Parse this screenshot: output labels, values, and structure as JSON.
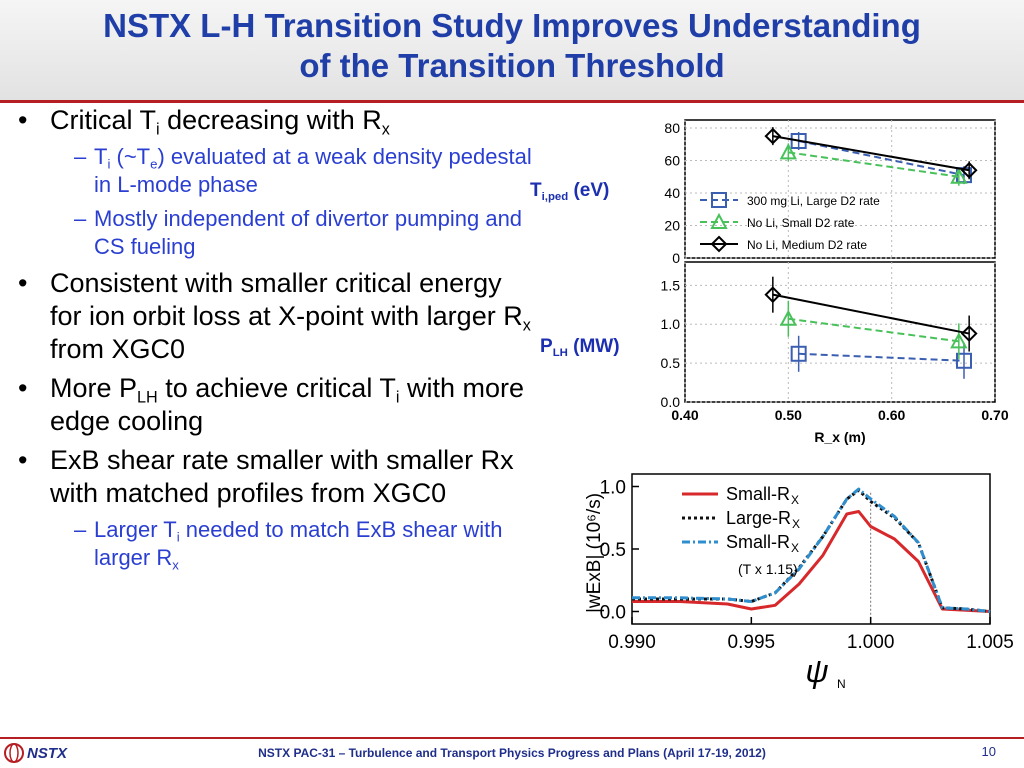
{
  "title": {
    "line1": "NSTX L-H Transition Study Improves Understanding",
    "line2": "of the Transition Threshold"
  },
  "bullets": {
    "b1_pre": "Critical T",
    "b1_sub1": "i",
    "b1_mid": " decreasing with R",
    "b1_sub2": "x",
    "b1a_pre": "T",
    "b1a_sub1": "i",
    "b1a_mid": " (~T",
    "b1a_sub2": "e",
    "b1a_post": ") evaluated at a weak density pedestal in L-mode phase",
    "b1b": "Mostly independent of divertor pumping and CS fueling",
    "b2_pre": "Consistent with smaller critical energy for ion orbit loss at X-point with larger R",
    "b2_sub": "x",
    "b2_post": " from XGC0",
    "b3_pre": "More P",
    "b3_sub1": "LH",
    "b3_mid": " to achieve critical T",
    "b3_sub2": "i",
    "b3_post": " with more edge cooling",
    "b4": "ExB shear rate smaller with smaller Rx with matched profiles from XGC0",
    "b4a_pre": "Larger T",
    "b4a_sub1": "i",
    "b4a_mid": " needed to match ExB shear with larger R",
    "b4a_sub2": "x"
  },
  "fig_labels": {
    "ti_main": "T",
    "ti_sub": "i,ped",
    "ti_unit": " (eV)",
    "plh_main": "P",
    "plh_sub": "LH",
    "plh_unit": " (MW)"
  },
  "footer": {
    "logo": "NSTX",
    "text": "NSTX PAC-31 – Turbulence and Transport Physics Progress and Plans (April 17-19, 2012)",
    "page": "10"
  },
  "colors": {
    "title": "#1f3ea8",
    "rule": "#b51f24",
    "sub_bullet": "#2a3fd1",
    "red": "#d7282b",
    "blue": "#3b5fb0",
    "green": "#49c15a"
  },
  "chart_data": [
    {
      "type": "line",
      "title": "",
      "xlabel": "R_x (m)",
      "ylabel": "T_i,ped (eV)",
      "xlim": [
        0.4,
        0.7
      ],
      "ylim": [
        0,
        80
      ],
      "yticks": [
        "0",
        "20",
        "40",
        "60",
        "80"
      ],
      "series": [
        {
          "name": "300 mg Li, Large D2 rate",
          "color": "#3b5fb0",
          "marker": "square",
          "style": "dashed",
          "x": [
            0.51,
            0.67
          ],
          "y": [
            72,
            51
          ]
        },
        {
          "name": "No Li, Small D2 rate",
          "color": "#49c15a",
          "marker": "triangle",
          "style": "dashed",
          "x": [
            0.5,
            0.665
          ],
          "y": [
            65,
            50
          ]
        },
        {
          "name": "No Li, Medium D2 rate",
          "color": "#000000",
          "marker": "diamond",
          "style": "solid",
          "x": [
            0.485,
            0.675
          ],
          "y": [
            75,
            54
          ]
        }
      ]
    },
    {
      "type": "line",
      "title": "",
      "xlabel": "R_x (m)",
      "ylabel": "P_LH (MW)",
      "xlim": [
        0.4,
        0.7
      ],
      "ylim": [
        0,
        1.8
      ],
      "xticks": [
        "0.40",
        "0.50",
        "0.60",
        "0.70"
      ],
      "yticks": [
        "0.0",
        "0.5",
        "1.0",
        "1.5"
      ],
      "series": [
        {
          "name": "300 mg Li, Large D2 rate",
          "color": "#3b5fb0",
          "marker": "square",
          "style": "dashed",
          "x": [
            0.51,
            0.67
          ],
          "y": [
            0.62,
            0.53
          ]
        },
        {
          "name": "No Li, Small D2 rate",
          "color": "#49c15a",
          "marker": "triangle",
          "style": "dashed",
          "x": [
            0.5,
            0.665
          ],
          "y": [
            1.07,
            0.78
          ]
        },
        {
          "name": "No Li, Medium D2 rate",
          "color": "#000000",
          "marker": "diamond",
          "style": "solid",
          "x": [
            0.485,
            0.675
          ],
          "y": [
            1.38,
            0.88
          ]
        }
      ]
    },
    {
      "type": "line",
      "title": "",
      "xlabel": "ψN",
      "ylabel": "|w_ExB| (10^6/s)",
      "xlim": [
        0.99,
        1.005
      ],
      "ylim": [
        -0.1,
        1.1
      ],
      "xticks": [
        "0.990",
        "0.995",
        "1.000",
        "1.005"
      ],
      "yticks": [
        "0.0",
        "0.5",
        "1.0"
      ],
      "annotation": "(T x 1.15)",
      "legend": [
        "Small-R_X",
        "Large-R_X",
        "Small-R_X"
      ],
      "series": [
        {
          "name": "Small-R_X",
          "color": "#d7282b",
          "x": [
            0.99,
            0.992,
            0.994,
            0.995,
            0.996,
            0.997,
            0.998,
            0.999,
            0.9995,
            1.0,
            1.001,
            1.002,
            1.003,
            1.004,
            1.005
          ],
          "y": [
            0.08,
            0.08,
            0.06,
            0.02,
            0.05,
            0.22,
            0.45,
            0.78,
            0.8,
            0.68,
            0.58,
            0.4,
            0.02,
            0.01,
            0.0
          ]
        },
        {
          "name": "Large-R_X",
          "color": "#111111",
          "x": [
            0.99,
            0.992,
            0.994,
            0.995,
            0.996,
            0.997,
            0.998,
            0.999,
            0.9995,
            1.0,
            1.001,
            1.002,
            1.003,
            1.004,
            1.005
          ],
          "y": [
            0.1,
            0.1,
            0.1,
            0.08,
            0.15,
            0.35,
            0.6,
            0.9,
            0.97,
            0.88,
            0.75,
            0.55,
            0.03,
            0.02,
            0.0
          ]
        },
        {
          "name": "Small-R_X (T x 1.15)",
          "color": "#2f8fce",
          "x": [
            0.99,
            0.992,
            0.994,
            0.995,
            0.996,
            0.997,
            0.998,
            0.999,
            0.9995,
            1.0,
            1.001,
            1.002,
            1.003,
            1.004,
            1.005
          ],
          "y": [
            0.11,
            0.11,
            0.1,
            0.08,
            0.15,
            0.34,
            0.6,
            0.9,
            0.98,
            0.9,
            0.76,
            0.55,
            0.03,
            0.02,
            0.0
          ]
        }
      ]
    }
  ]
}
